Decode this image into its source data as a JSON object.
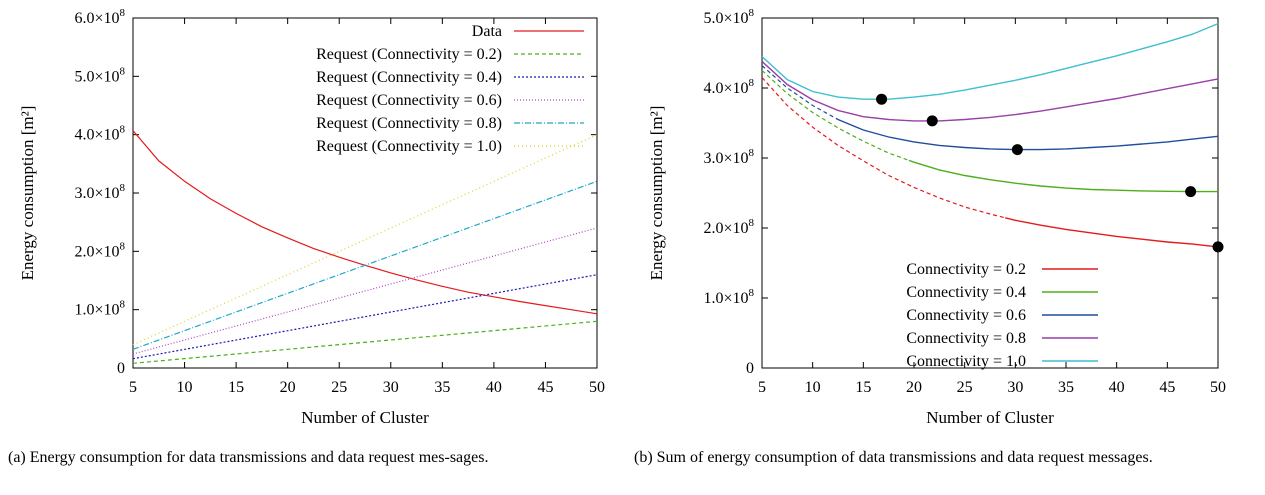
{
  "chart_data": [
    {
      "type": "line",
      "xlabel": "Number of Cluster",
      "ylabel": "Energy consumption [m²]",
      "xlim": [
        5,
        50
      ],
      "ylim": [
        0,
        600000000
      ],
      "x_ticks": [
        5,
        10,
        15,
        20,
        25,
        30,
        35,
        40,
        45,
        50
      ],
      "x_tick_labels": [
        "5",
        "10",
        "15",
        "20",
        "25",
        "30",
        "35",
        "40",
        "45",
        "50"
      ],
      "y_ticks": [
        0,
        100000000,
        200000000,
        300000000,
        400000000,
        500000000,
        600000000
      ],
      "y_tick_labels": [
        {
          "mant": "0",
          "exp": ""
        },
        {
          "mant": "1.0×10",
          "exp": "8"
        },
        {
          "mant": "2.0×10",
          "exp": "8"
        },
        {
          "mant": "3.0×10",
          "exp": "8"
        },
        {
          "mant": "4.0×10",
          "exp": "8"
        },
        {
          "mant": "5.0×10",
          "exp": "8"
        },
        {
          "mant": "6.0×10",
          "exp": "8"
        }
      ],
      "legend_position": "top-right",
      "series": [
        {
          "name": "Data",
          "color": "#e41a1c",
          "dash": "",
          "x": [
            5,
            7.5,
            10,
            12.5,
            15,
            17.5,
            20,
            22.5,
            25,
            27.5,
            30,
            32.5,
            35,
            37.5,
            40,
            42.5,
            45,
            47.5,
            50
          ],
          "values": [
            407000000,
            355000000,
            320000000,
            290000000,
            265000000,
            242000000,
            223000000,
            205000000,
            190000000,
            176000000,
            163000000,
            151000000,
            140000000,
            130000000,
            122000000,
            114000000,
            107000000,
            100000000,
            93000000
          ]
        },
        {
          "name": "Request (Connectivity = 0.2)",
          "color": "#4daf1a",
          "dash": "4,3",
          "x": [
            5,
            50
          ],
          "values": [
            8000000,
            80000000
          ]
        },
        {
          "name": "Request (Connectivity = 0.4)",
          "color": "#1a1ab0",
          "dash": "2,2",
          "x": [
            5,
            50
          ],
          "values": [
            16000000,
            160000000
          ]
        },
        {
          "name": "Request (Connectivity = 0.6)",
          "color": "#b040c0",
          "dash": "1,2",
          "x": [
            5,
            50
          ],
          "values": [
            24000000,
            240000000
          ]
        },
        {
          "name": "Request (Connectivity = 0.8)",
          "color": "#20a8c8",
          "dash": "6,2,1,2",
          "x": [
            5,
            50
          ],
          "values": [
            32000000,
            320000000
          ]
        },
        {
          "name": "Request (Connectivity = 1.0)",
          "color": "#e0d020",
          "dash": "1,3",
          "x": [
            5,
            50
          ],
          "values": [
            40000000,
            400000000
          ]
        }
      ]
    },
    {
      "type": "line",
      "xlabel": "Number of Cluster",
      "ylabel": "Energy consumption [m²]",
      "xlim": [
        5,
        50
      ],
      "ylim": [
        0,
        500000000
      ],
      "x_ticks": [
        5,
        10,
        15,
        20,
        25,
        30,
        35,
        40,
        45,
        50
      ],
      "x_tick_labels": [
        "5",
        "10",
        "15",
        "20",
        "25",
        "30",
        "35",
        "40",
        "45",
        "50"
      ],
      "y_ticks": [
        0,
        100000000,
        200000000,
        300000000,
        400000000,
        500000000
      ],
      "y_tick_labels": [
        {
          "mant": "0",
          "exp": ""
        },
        {
          "mant": "1.0×10",
          "exp": "8"
        },
        {
          "mant": "2.0×10",
          "exp": "8"
        },
        {
          "mant": "3.0×10",
          "exp": "8"
        },
        {
          "mant": "4.0×10",
          "exp": "8"
        },
        {
          "mant": "5.0×10",
          "exp": "8"
        }
      ],
      "legend_position": "bottom-right",
      "series": [
        {
          "name": "Connectivity = 0.2",
          "color": "#e41a1c",
          "x": [
            5,
            7.5,
            10,
            12.5,
            15,
            17.5,
            20,
            22.5,
            25,
            27.5,
            30,
            32.5,
            35,
            37.5,
            40,
            42.5,
            45,
            47.5,
            50
          ],
          "values": [
            415000000,
            375000000,
            344000000,
            318000000,
            296000000,
            275000000,
            258000000,
            243000000,
            230000000,
            220000000,
            211000000,
            204000000,
            198000000,
            193000000,
            188000000,
            184000000,
            180000000,
            177000000,
            173000000
          ],
          "solid_from": 29,
          "optimum": [
            50,
            173000000
          ]
        },
        {
          "name": "Connectivity = 0.4",
          "color": "#4daf1a",
          "x": [
            5,
            7.5,
            10,
            12.5,
            15,
            17.5,
            20,
            22.5,
            25,
            27.5,
            30,
            32.5,
            35,
            37.5,
            40,
            42.5,
            45,
            47.5,
            50
          ],
          "values": [
            425000000,
            392000000,
            365000000,
            343000000,
            324000000,
            307000000,
            294000000,
            283000000,
            275000000,
            269000000,
            264000000,
            260000000,
            257000000,
            255000000,
            254000000,
            253000000,
            252500000,
            252000000,
            252000000
          ],
          "solid_from": 19.5,
          "optimum": [
            47.3,
            252000000
          ]
        },
        {
          "name": "Connectivity = 0.6",
          "color": "#1f4e9e",
          "x": [
            5,
            7.5,
            10,
            12.5,
            15,
            17.5,
            20,
            22.5,
            25,
            27.5,
            30,
            32.5,
            35,
            37.5,
            40,
            42.5,
            45,
            47.5,
            50
          ],
          "values": [
            432000000,
            400000000,
            375000000,
            355000000,
            340000000,
            330000000,
            323000000,
            318000000,
            315000000,
            313000000,
            312000000,
            312000000,
            313000000,
            315000000,
            317000000,
            320000000,
            323000000,
            327000000,
            331000000
          ],
          "solid_from": 12.3,
          "optimum": [
            30.2,
            312000000
          ]
        },
        {
          "name": "Connectivity = 0.8",
          "color": "#9b3faa",
          "x": [
            5,
            7.5,
            10,
            12.5,
            15,
            17.5,
            20,
            22.5,
            25,
            27.5,
            30,
            32.5,
            35,
            37.5,
            40,
            42.5,
            45,
            47.5,
            50
          ],
          "values": [
            438000000,
            405000000,
            383000000,
            368000000,
            359000000,
            355000000,
            353000000,
            353000000,
            355000000,
            358000000,
            362000000,
            367000000,
            373000000,
            379000000,
            385000000,
            392000000,
            399000000,
            406000000,
            413000000
          ],
          "solid_from": 5,
          "optimum": [
            21.8,
            353000000
          ]
        },
        {
          "name": "Connectivity = 1.0",
          "color": "#3fbfcf",
          "x": [
            5,
            7.5,
            10,
            12.5,
            15,
            17.5,
            20,
            22.5,
            25,
            27.5,
            30,
            32.5,
            35,
            37.5,
            40,
            42.5,
            45,
            47.5,
            50
          ],
          "values": [
            445000000,
            412000000,
            395000000,
            387000000,
            384000000,
            384000000,
            387000000,
            391000000,
            397000000,
            404000000,
            411000000,
            419000000,
            428000000,
            437000000,
            446000000,
            456000000,
            466000000,
            477000000,
            492000000
          ],
          "solid_from": 5,
          "optimum": [
            16.8,
            384000000
          ]
        }
      ]
    }
  ],
  "captions": {
    "a": "(a) Energy consumption for data transmissions and data request mes-sages.",
    "b": "(b) Sum of energy consumption of data transmissions and data request messages."
  }
}
